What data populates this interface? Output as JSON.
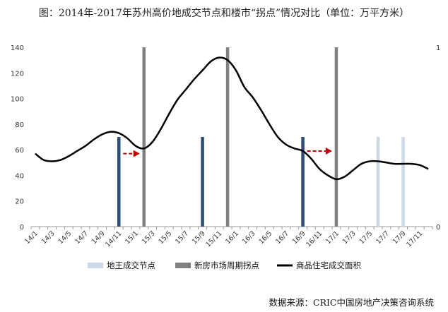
{
  "title": "图：2014年-2017年苏州高价地成交节点和楼市“拐点”情况对比（单位：万平方米）",
  "source": "数据来源：CRIC中国房地产决策咨询系统",
  "colors": {
    "land_nodes": "#2e4e72",
    "land_nodes_light": "#ccd8e4",
    "market_turning": "#808080",
    "area_line": "#000000",
    "arrow": "#c00000",
    "axis": "#999999",
    "text": "#333333"
  },
  "chart_data": {
    "type": "line",
    "y_left": {
      "min": 0,
      "max": 140,
      "ticks": [
        0,
        20,
        40,
        60,
        80,
        100,
        120,
        140
      ]
    },
    "y_right": {
      "min": 0,
      "max": 1,
      "ticks": [
        0,
        1
      ]
    },
    "x_tick_labels": [
      "14/1",
      "14/3",
      "14/5",
      "14/7",
      "14/9",
      "14/11",
      "15/1",
      "15/3",
      "15/5",
      "15/7",
      "15/9",
      "15/11",
      "16/1",
      "16/3",
      "16/5",
      "16/7",
      "16/9",
      "16/11",
      "17/1",
      "17/3",
      "17/5",
      "17/7",
      "17/9",
      "17/11"
    ],
    "months": [
      "14/1",
      "14/2",
      "14/3",
      "14/4",
      "14/5",
      "14/6",
      "14/7",
      "14/8",
      "14/9",
      "14/10",
      "14/11",
      "14/12",
      "15/1",
      "15/2",
      "15/3",
      "15/4",
      "15/5",
      "15/6",
      "15/7",
      "15/8",
      "15/9",
      "15/10",
      "15/11",
      "15/12",
      "16/1",
      "16/2",
      "16/3",
      "16/4",
      "16/5",
      "16/6",
      "16/7",
      "16/8",
      "16/9",
      "16/10",
      "16/11",
      "16/12",
      "17/1",
      "17/2",
      "17/3",
      "17/4",
      "17/5",
      "17/6",
      "17/7",
      "17/8",
      "17/9",
      "17/10",
      "17/11",
      "17/12"
    ],
    "series": [
      {
        "name": "商品住宅成交面积",
        "values": [
          57,
          52,
          51,
          52,
          55,
          59,
          63,
          68,
          72,
          74,
          73,
          69,
          63,
          61,
          66,
          76,
          88,
          99,
          107,
          115,
          122,
          129,
          132,
          130,
          122,
          109,
          101,
          91,
          80,
          70,
          64,
          61,
          59,
          53,
          45,
          40,
          37,
          39,
          44,
          49,
          51,
          51,
          50,
          49,
          49,
          49,
          48,
          45
        ]
      }
    ],
    "bar_series": [
      {
        "name": "地王成交节点",
        "style": "dark",
        "months": [
          "14/11",
          "15/9",
          "16/9"
        ]
      },
      {
        "name": "地王成交节点",
        "style": "light",
        "months": [
          "17/6",
          "17/9"
        ]
      },
      {
        "name": "新房市场周期拐点",
        "months": [
          "15/2",
          "15/12",
          "17/1"
        ]
      }
    ],
    "arrows": [
      {
        "from": "14/11",
        "to": "15/2",
        "y": 57
      },
      {
        "from": "16/9",
        "to": "17/1",
        "y": 59
      }
    ],
    "legend": [
      {
        "label": "地王成交节点",
        "kind": "bar-light"
      },
      {
        "label": "新房市场周期拐点",
        "kind": "bar-grey"
      },
      {
        "label": "商品住宅成交面积",
        "kind": "line"
      }
    ],
    "legend_position": "bottom",
    "grid": false
  }
}
